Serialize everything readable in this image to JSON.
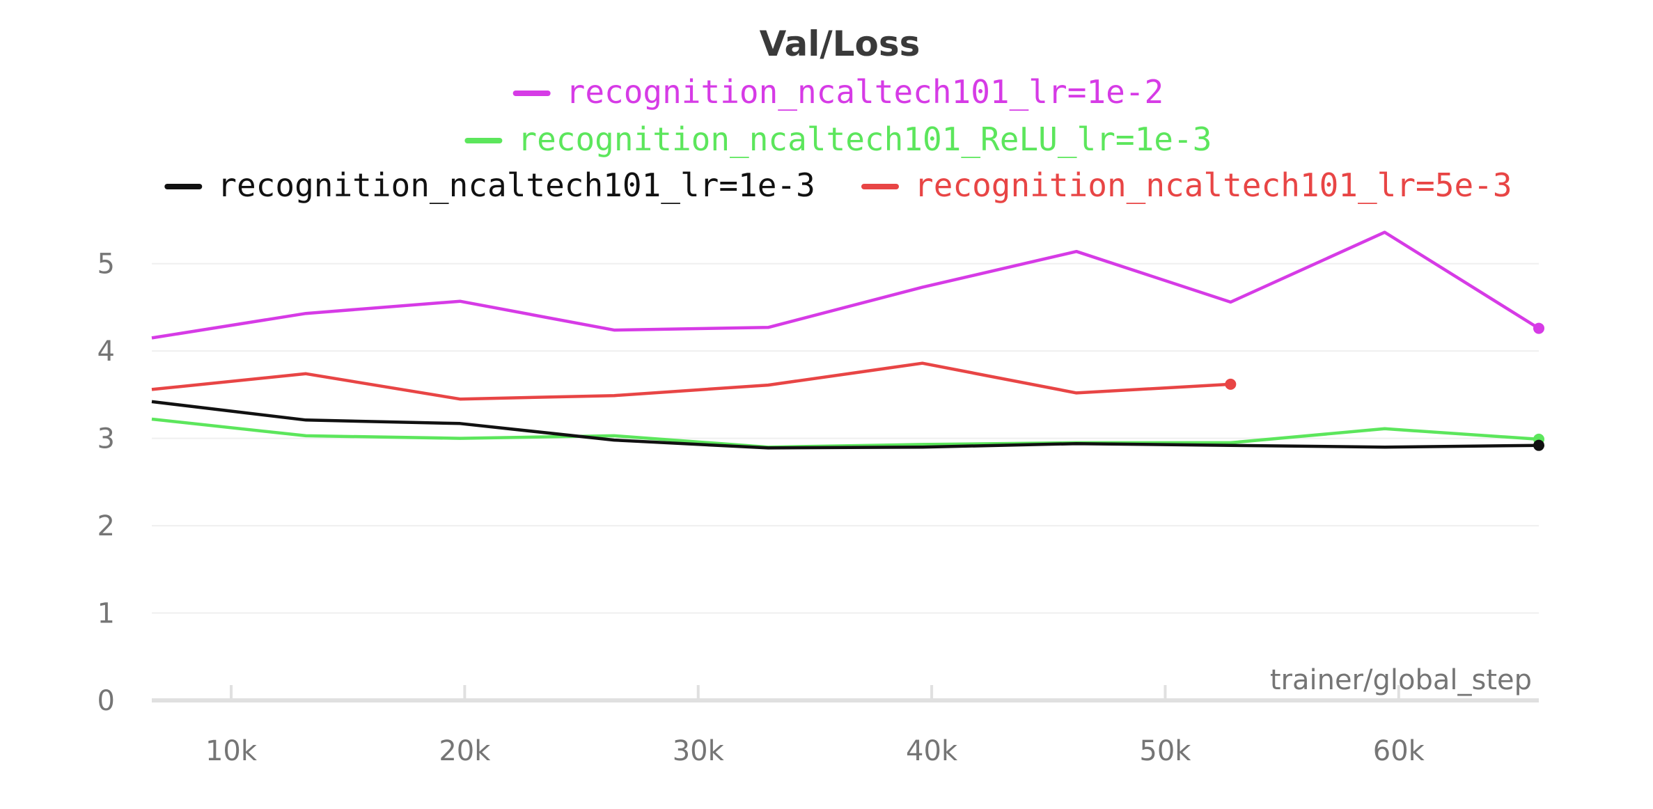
{
  "chart_data": {
    "type": "line",
    "title": "Val/Loss",
    "xlabel": "trainer/global_step",
    "ylabel": "",
    "xlim": [
      6600,
      66000
    ],
    "ylim": [
      0,
      5.5
    ],
    "x_ticks": [
      10000,
      20000,
      30000,
      40000,
      50000,
      60000
    ],
    "x_tick_labels": [
      "10k",
      "20k",
      "30k",
      "40k",
      "50k",
      "60k"
    ],
    "y_ticks": [
      0,
      1,
      2,
      3,
      4,
      5
    ],
    "y_tick_labels": [
      "0",
      "1",
      "2",
      "3",
      "4",
      "5"
    ],
    "grid": true,
    "legend_position": "top",
    "series": [
      {
        "name": "recognition_ncaltech101_lr=1e-2",
        "color": "#d63be6",
        "x": [
          6600,
          13200,
          19800,
          26400,
          33000,
          39600,
          46200,
          52800,
          59400,
          66000
        ],
        "y": [
          4.15,
          4.43,
          4.57,
          4.24,
          4.27,
          4.73,
          5.14,
          4.56,
          5.36,
          4.26
        ]
      },
      {
        "name": "recognition_ncaltech101_ReLU_lr=1e-3",
        "color": "#5ce65c",
        "x": [
          6600,
          13200,
          19800,
          26400,
          33000,
          39600,
          46200,
          52800,
          59400,
          66000
        ],
        "y": [
          3.22,
          3.03,
          3.0,
          3.03,
          2.9,
          2.93,
          2.95,
          2.95,
          3.11,
          2.99
        ]
      },
      {
        "name": "recognition_ncaltech101_lr=1e-3",
        "color": "#111111",
        "x": [
          6600,
          13200,
          19800,
          26400,
          33000,
          39600,
          46200,
          52800,
          59400,
          66000
        ],
        "y": [
          3.42,
          3.21,
          3.17,
          2.98,
          2.89,
          2.9,
          2.94,
          2.92,
          2.9,
          2.92
        ]
      },
      {
        "name": "recognition_ncaltech101_lr=5e-3",
        "color": "#e84545",
        "x": [
          6600,
          13200,
          19800,
          26400,
          33000,
          39600,
          46200,
          52800
        ],
        "y": [
          3.56,
          3.74,
          3.45,
          3.49,
          3.61,
          3.86,
          3.52,
          3.62
        ]
      }
    ]
  }
}
